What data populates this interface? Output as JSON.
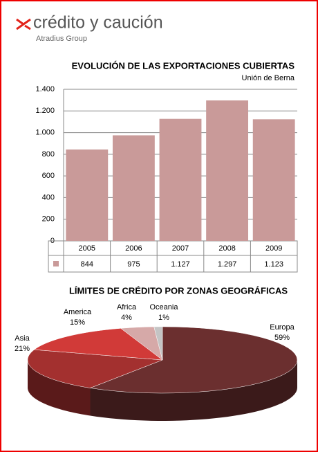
{
  "header": {
    "logo": "crédito y caución",
    "tagline": "Atradius Group"
  },
  "chart_data": [
    {
      "type": "bar",
      "title": "EVOLUCIÓN DE LAS EXPORTACIONES CUBIERTAS",
      "subtitle": "Unión de Berna",
      "categories": [
        "2005",
        "2006",
        "2007",
        "2008",
        "2009"
      ],
      "values": [
        844,
        975,
        1127,
        1297,
        1123
      ],
      "value_labels": [
        "844",
        "975",
        "1.127",
        "1.297",
        "1.123"
      ],
      "color": "#c99a99",
      "ylim": [
        0,
        1400
      ],
      "yticks": [
        0,
        200,
        400,
        600,
        800,
        {
          "value": 1000,
          "label": "1.000"
        },
        {
          "value": 1200,
          "label": "1.200"
        },
        {
          "value": 1400,
          "label": "1.400"
        }
      ],
      "grid": true
    },
    {
      "type": "pie",
      "title": "LÍMITES DE CRÉDITO POR ZONAS GEOGRÁFICAS",
      "categories": [
        "Europa",
        "Asia",
        "America",
        "Africa",
        "Oceania"
      ],
      "values": [
        59,
        21,
        15,
        4,
        1
      ],
      "value_labels": [
        "59%",
        "21%",
        "15%",
        "4%",
        "1%"
      ],
      "colors": [
        "#6b2f2f",
        "#a3302f",
        "#d13a38",
        "#d6a9a8",
        "#c4c4c4"
      ]
    }
  ]
}
